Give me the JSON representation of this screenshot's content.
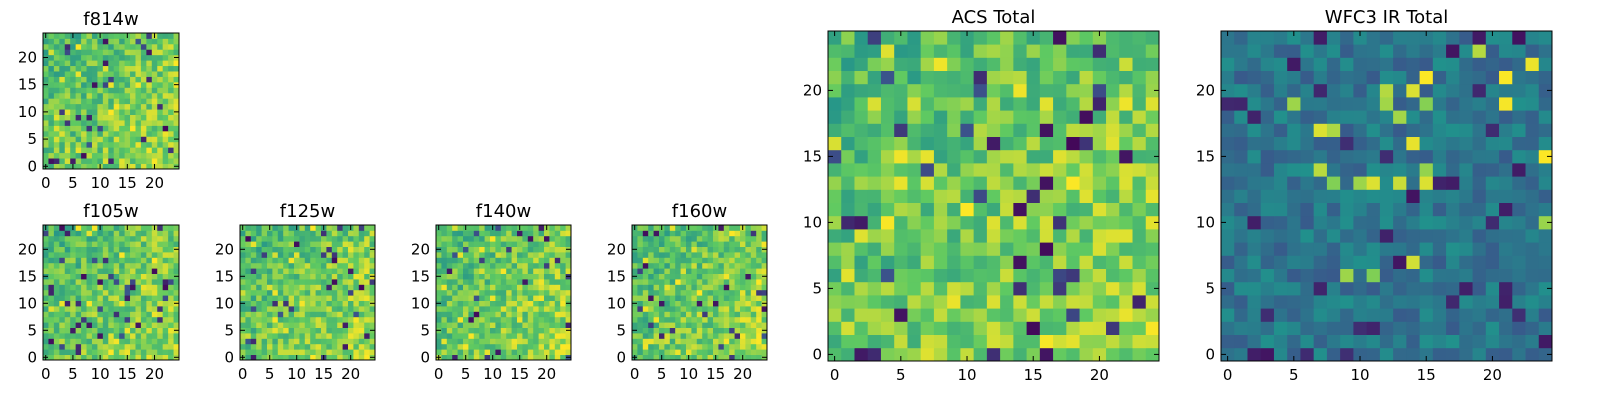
{
  "figure": {
    "colormap": "viridis",
    "colormap_stops": [
      "#440154",
      "#3b528b",
      "#21918c",
      "#5ec962",
      "#fde725"
    ]
  },
  "chart_data": [
    {
      "id": "f814w",
      "type": "heatmap",
      "title": "f814w",
      "grid_size": [
        25,
        25
      ],
      "xlim": [
        0,
        24
      ],
      "ylim": [
        0,
        24
      ],
      "tone": "light",
      "seed": 11,
      "xticks": [
        "0",
        "5",
        "10",
        "15",
        "20"
      ],
      "yticks": [
        "0",
        "5",
        "10",
        "15",
        "20"
      ]
    },
    {
      "id": "f105w",
      "type": "heatmap",
      "title": "f105w",
      "grid_size": [
        25,
        25
      ],
      "xlim": [
        0,
        24
      ],
      "ylim": [
        0,
        24
      ],
      "tone": "light",
      "seed": 23,
      "xticks": [
        "0",
        "5",
        "10",
        "15",
        "20"
      ],
      "yticks": [
        "0",
        "5",
        "10",
        "15",
        "20"
      ]
    },
    {
      "id": "f125w",
      "type": "heatmap",
      "title": "f125w",
      "grid_size": [
        25,
        25
      ],
      "xlim": [
        0,
        24
      ],
      "ylim": [
        0,
        24
      ],
      "tone": "light",
      "seed": 37,
      "xticks": [
        "0",
        "5",
        "10",
        "15",
        "20"
      ],
      "yticks": [
        "0",
        "5",
        "10",
        "15",
        "20"
      ]
    },
    {
      "id": "f140w",
      "type": "heatmap",
      "title": "f140w",
      "grid_size": [
        25,
        25
      ],
      "xlim": [
        0,
        24
      ],
      "ylim": [
        0,
        24
      ],
      "tone": "light",
      "seed": 41,
      "xticks": [
        "0",
        "5",
        "10",
        "15",
        "20"
      ],
      "yticks": [
        "0",
        "5",
        "10",
        "15",
        "20"
      ]
    },
    {
      "id": "f160w",
      "type": "heatmap",
      "title": "f160w",
      "grid_size": [
        25,
        25
      ],
      "xlim": [
        0,
        24
      ],
      "ylim": [
        0,
        24
      ],
      "tone": "light",
      "seed": 53,
      "xticks": [
        "0",
        "5",
        "10",
        "15",
        "20"
      ],
      "yticks": [
        "0",
        "5",
        "10",
        "15",
        "20"
      ]
    },
    {
      "id": "acs_total",
      "type": "heatmap",
      "title": "ACS Total",
      "grid_size": [
        25,
        25
      ],
      "xlim": [
        0,
        24
      ],
      "ylim": [
        0,
        24
      ],
      "tone": "light",
      "seed": 67,
      "xticks": [
        "0",
        "5",
        "10",
        "15",
        "20"
      ],
      "yticks": [
        "0",
        "5",
        "10",
        "15",
        "20"
      ]
    },
    {
      "id": "wfc3_ir_total",
      "type": "heatmap",
      "title": "WFC3 IR Total",
      "grid_size": [
        25,
        25
      ],
      "xlim": [
        0,
        24
      ],
      "ylim": [
        0,
        24
      ],
      "tone": "dark",
      "seed": 79,
      "xticks": [
        "0",
        "5",
        "10",
        "15",
        "20"
      ],
      "yticks": [
        "0",
        "5",
        "10",
        "15",
        "20"
      ]
    }
  ]
}
